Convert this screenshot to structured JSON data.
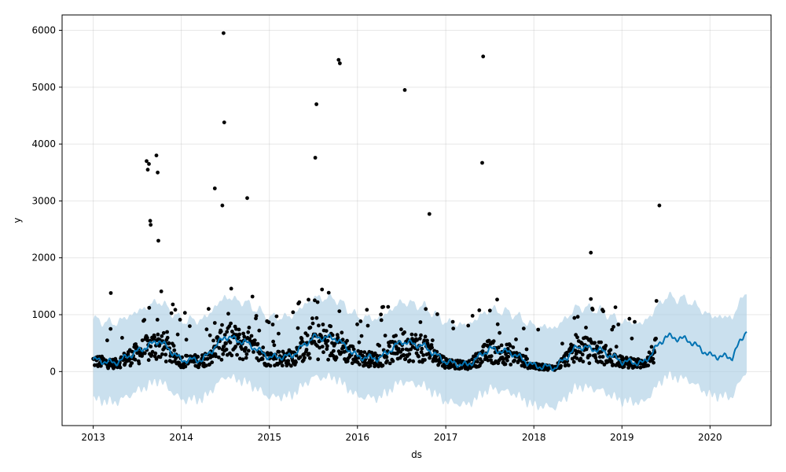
{
  "chart_data": {
    "type": "scatter",
    "title": "",
    "xlabel": "ds",
    "ylabel": "y",
    "x_type": "date",
    "xlim": [
      "2012-08-25",
      "2020-09-10"
    ],
    "ylim": [
      -950,
      6270
    ],
    "x_ticks": [
      "2013",
      "2014",
      "2015",
      "2016",
      "2017",
      "2018",
      "2019",
      "2020"
    ],
    "y_ticks": [
      0,
      1000,
      2000,
      3000,
      4000,
      5000,
      6000
    ],
    "grid": true,
    "colors": {
      "observed": "#000000",
      "forecast": "#0072B2",
      "interval": "#a6cce3"
    },
    "observed_notable_points": [
      {
        "x": "2013-03-15",
        "y": 1380
      },
      {
        "x": "2013-08-10",
        "y": 3700
      },
      {
        "x": "2013-08-15",
        "y": 3550
      },
      {
        "x": "2013-08-20",
        "y": 3650
      },
      {
        "x": "2013-08-25",
        "y": 2650
      },
      {
        "x": "2013-08-27",
        "y": 2580
      },
      {
        "x": "2013-09-20",
        "y": 3800
      },
      {
        "x": "2013-09-25",
        "y": 3500
      },
      {
        "x": "2013-09-28",
        "y": 2300
      },
      {
        "x": "2014-05-20",
        "y": 3220
      },
      {
        "x": "2014-06-25",
        "y": 5950
      },
      {
        "x": "2014-06-28",
        "y": 4380
      },
      {
        "x": "2014-06-20",
        "y": 2920
      },
      {
        "x": "2014-10-01",
        "y": 3050
      },
      {
        "x": "2015-07-15",
        "y": 4700
      },
      {
        "x": "2015-07-10",
        "y": 3760
      },
      {
        "x": "2015-10-15",
        "y": 5480
      },
      {
        "x": "2015-10-20",
        "y": 5420
      },
      {
        "x": "2016-07-15",
        "y": 4950
      },
      {
        "x": "2016-10-25",
        "y": 2770
      },
      {
        "x": "2017-06-05",
        "y": 5540
      },
      {
        "x": "2017-06-01",
        "y": 3670
      },
      {
        "x": "2018-08-25",
        "y": 2090
      },
      {
        "x": "2019-06-05",
        "y": 2920
      }
    ],
    "forecast_series": {
      "name": "",
      "x": [
        "2013-01-01",
        "2013-04-01",
        "2013-07-01",
        "2013-10-01",
        "2014-01-01",
        "2014-04-01",
        "2014-07-01",
        "2014-10-01",
        "2015-01-01",
        "2015-04-01",
        "2015-07-01",
        "2015-10-01",
        "2016-01-01",
        "2016-04-01",
        "2016-07-01",
        "2016-10-01",
        "2017-01-01",
        "2017-04-01",
        "2017-07-01",
        "2017-10-01",
        "2018-01-01",
        "2018-04-01",
        "2018-07-01",
        "2018-10-01",
        "2019-01-01",
        "2019-04-01",
        "2019-07-01",
        "2019-10-01",
        "2020-01-01",
        "2020-04-01",
        "2020-06-01"
      ],
      "y": [
        210,
        150,
        350,
        550,
        200,
        210,
        620,
        500,
        250,
        270,
        600,
        590,
        260,
        230,
        530,
        450,
        170,
        110,
        400,
        330,
        100,
        70,
        440,
        380,
        180,
        150,
        620,
        560,
        280,
        250,
        740
      ],
      "interval_half_width": 700
    }
  }
}
